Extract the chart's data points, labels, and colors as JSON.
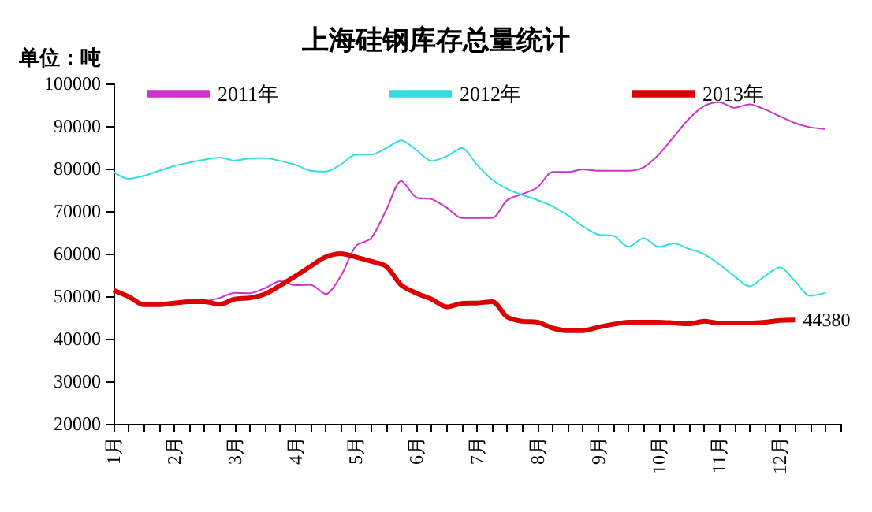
{
  "chart_data": {
    "type": "line",
    "title": "上海硅钢库存总量统计",
    "ylabel": "单位：吨",
    "categories": [
      "1月",
      null,
      null,
      null,
      "2月",
      null,
      null,
      null,
      "3月",
      null,
      null,
      null,
      "4月",
      null,
      null,
      null,
      "5月",
      null,
      null,
      null,
      "6月",
      null,
      null,
      null,
      "7月",
      null,
      null,
      null,
      "8月",
      null,
      null,
      null,
      "9月",
      null,
      null,
      null,
      "10月",
      null,
      null,
      null,
      "11月",
      null,
      null,
      null,
      "12月",
      null,
      null,
      null,
      null
    ],
    "series": [
      {
        "name": "2011年",
        "color": "#cc33cc",
        "values": [
          null,
          null,
          null,
          null,
          null,
          null,
          48700,
          49600,
          50800,
          50700,
          51900,
          53500,
          52600,
          52700,
          50500,
          54700,
          61800,
          63600,
          70200,
          77100,
          73200,
          72800,
          70800,
          68400,
          68400,
          68400,
          72600,
          74000,
          75600,
          79200,
          79200,
          79800,
          79500,
          79500,
          79500,
          80300,
          83300,
          87500,
          91700,
          94700,
          95600,
          94300,
          95100,
          93900,
          92300,
          90700,
          89700,
          89300,
          null
        ]
      },
      {
        "name": "2012年",
        "color": "#33dddd",
        "values": [
          79200,
          77600,
          78300,
          79500,
          80600,
          81400,
          82100,
          82600,
          81900,
          82400,
          82500,
          81800,
          80900,
          79500,
          79300,
          80900,
          83300,
          83300,
          84800,
          86600,
          84300,
          81800,
          82900,
          84800,
          80900,
          77400,
          75200,
          73800,
          72600,
          71100,
          69000,
          66400,
          64500,
          64200,
          61600,
          63600,
          61600,
          62400,
          61100,
          59900,
          57500,
          54700,
          52300,
          54700,
          56800,
          53500,
          50100,
          50800,
          null
        ]
      },
      {
        "name": "2013年",
        "color": "#dd0000",
        "values": [
          51400,
          49900,
          48000,
          48000,
          48400,
          48700,
          48700,
          48100,
          49300,
          49600,
          50500,
          52500,
          54700,
          57000,
          59200,
          60000,
          59200,
          58200,
          57000,
          52600,
          50700,
          49300,
          47500,
          48300,
          48400,
          48700,
          45100,
          44100,
          43900,
          42500,
          41900,
          41900,
          42700,
          43400,
          43900,
          43900,
          43900,
          43700,
          43500,
          44100,
          43700,
          43700,
          43700,
          43900,
          44300,
          44380,
          null,
          null,
          null
        ],
        "value_labels": [
          null,
          null,
          null,
          null,
          null,
          null,
          null,
          null,
          null,
          null,
          null,
          null,
          null,
          null,
          null,
          null,
          null,
          null,
          null,
          null,
          null,
          null,
          null,
          null,
          null,
          null,
          null,
          null,
          null,
          null,
          null,
          null,
          null,
          null,
          null,
          null,
          null,
          null,
          null,
          null,
          null,
          null,
          null,
          null,
          null,
          "44380",
          null,
          null,
          null
        ]
      }
    ],
    "ylim": [
      20000,
      100000
    ],
    "yticks": [
      20000,
      30000,
      40000,
      50000,
      60000,
      70000,
      80000,
      90000,
      100000
    ],
    "legend": "top",
    "grid": false,
    "marker": "none",
    "line_style": "solid"
  }
}
